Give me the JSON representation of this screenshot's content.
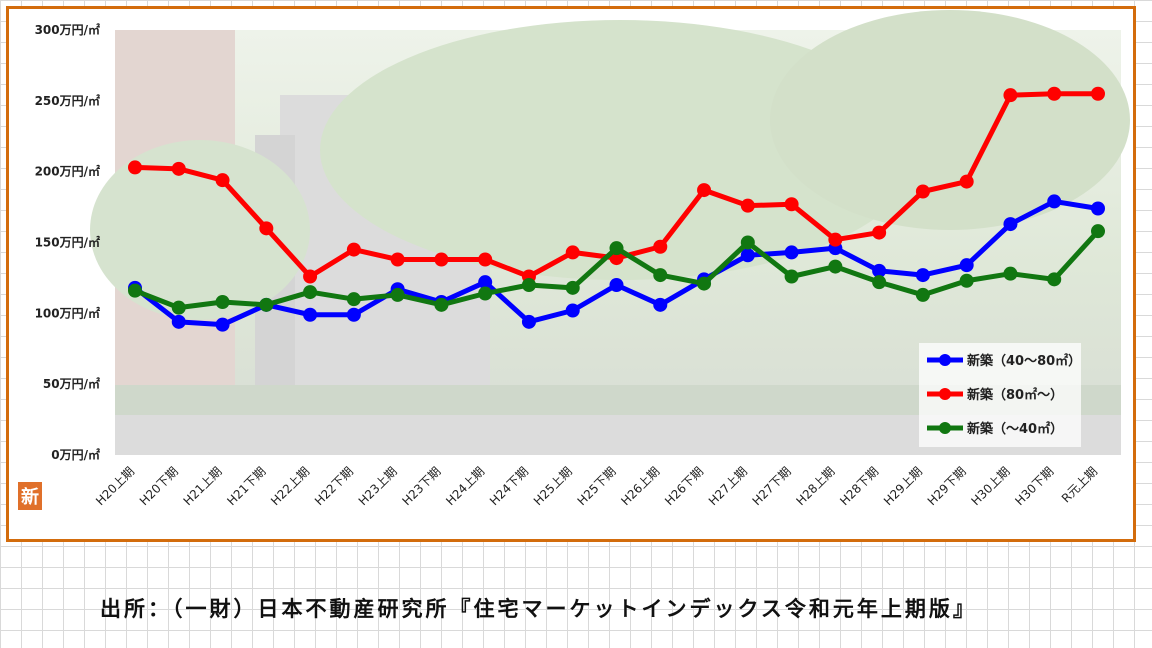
{
  "caption": "出所：（一財）日本不動産研究所『住宅マーケットインデックス令和元年上期版』",
  "logo_text": "新",
  "chart_data": {
    "type": "line",
    "title": "",
    "xlabel": "",
    "ylabel": "",
    "ylim": [
      0,
      300
    ],
    "y_ticks": [
      0,
      50,
      100,
      150,
      200,
      250,
      300
    ],
    "y_tick_labels": [
      "0万円/㎡",
      "50万円/㎡",
      "100万円/㎡",
      "150万円/㎡",
      "200万円/㎡",
      "250万円/㎡",
      "300万円/㎡"
    ],
    "categories": [
      "H20上期",
      "H20下期",
      "H21上期",
      "H21下期",
      "H22上期",
      "H22下期",
      "H23上期",
      "H23下期",
      "H24上期",
      "H24下期",
      "H25上期",
      "H25下期",
      "H26上期",
      "H26下期",
      "H27上期",
      "H27下期",
      "H28上期",
      "H28下期",
      "H29上期",
      "H29下期",
      "H30上期",
      "H30下期",
      "R元上期"
    ],
    "legend_position": "bottom-right",
    "grid": false,
    "series": [
      {
        "name": "新築（40～80㎡）",
        "color": "#0000ff",
        "values": [
          118,
          94,
          92,
          106,
          99,
          99,
          117,
          108,
          122,
          94,
          102,
          120,
          106,
          124,
          141,
          143,
          146,
          130,
          127,
          134,
          163,
          179,
          174
        ]
      },
      {
        "name": "新築（80㎡～）",
        "color": "#ff0000",
        "values": [
          203,
          202,
          194,
          160,
          126,
          145,
          138,
          138,
          138,
          126,
          143,
          139,
          147,
          187,
          176,
          177,
          152,
          157,
          186,
          193,
          254,
          255,
          255
        ]
      },
      {
        "name": "新築（～40㎡）",
        "color": "#117711",
        "values": [
          116,
          104,
          108,
          106,
          115,
          110,
          113,
          106,
          114,
          120,
          118,
          146,
          127,
          121,
          150,
          126,
          133,
          122,
          113,
          123,
          128,
          124,
          158
        ]
      }
    ]
  }
}
